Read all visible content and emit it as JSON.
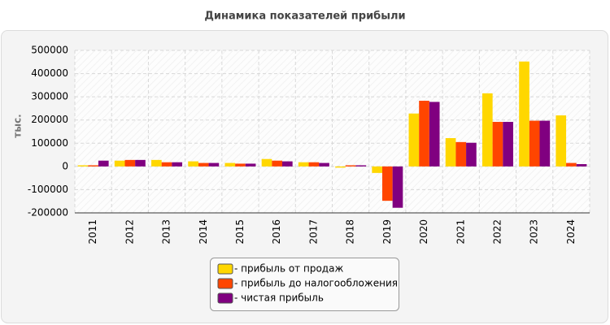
{
  "chart_data": {
    "type": "bar",
    "title": "Динамика показателей прибыли",
    "ylabel": "тыс.",
    "categories": [
      "2011",
      "2012",
      "2013",
      "2014",
      "2015",
      "2016",
      "2017",
      "2018",
      "2019",
      "2020",
      "2021",
      "2022",
      "2023",
      "2024"
    ],
    "series": [
      {
        "name": "- прибыль от продаж",
        "color": "#ffd700",
        "values": [
          5000,
          25000,
          28000,
          22000,
          15000,
          32000,
          18000,
          -5000,
          -28000,
          228000,
          122000,
          315000,
          452000,
          220000
        ]
      },
      {
        "name": "- прибыль до налогообложения",
        "color": "#ff4500",
        "values": [
          5000,
          28000,
          18000,
          15000,
          12000,
          25000,
          18000,
          5000,
          -148000,
          283000,
          105000,
          192000,
          197000,
          15000
        ]
      },
      {
        "name": "- чистая прибыль",
        "color": "#800080",
        "values": [
          25000,
          28000,
          18000,
          15000,
          12000,
          22000,
          15000,
          5000,
          -178000,
          278000,
          102000,
          192000,
          197000,
          10000
        ]
      }
    ],
    "ylim": [
      -200000,
      500000
    ],
    "yticks": [
      -200000,
      -100000,
      0,
      100000,
      200000,
      300000,
      400000,
      500000
    ],
    "grid": true
  }
}
